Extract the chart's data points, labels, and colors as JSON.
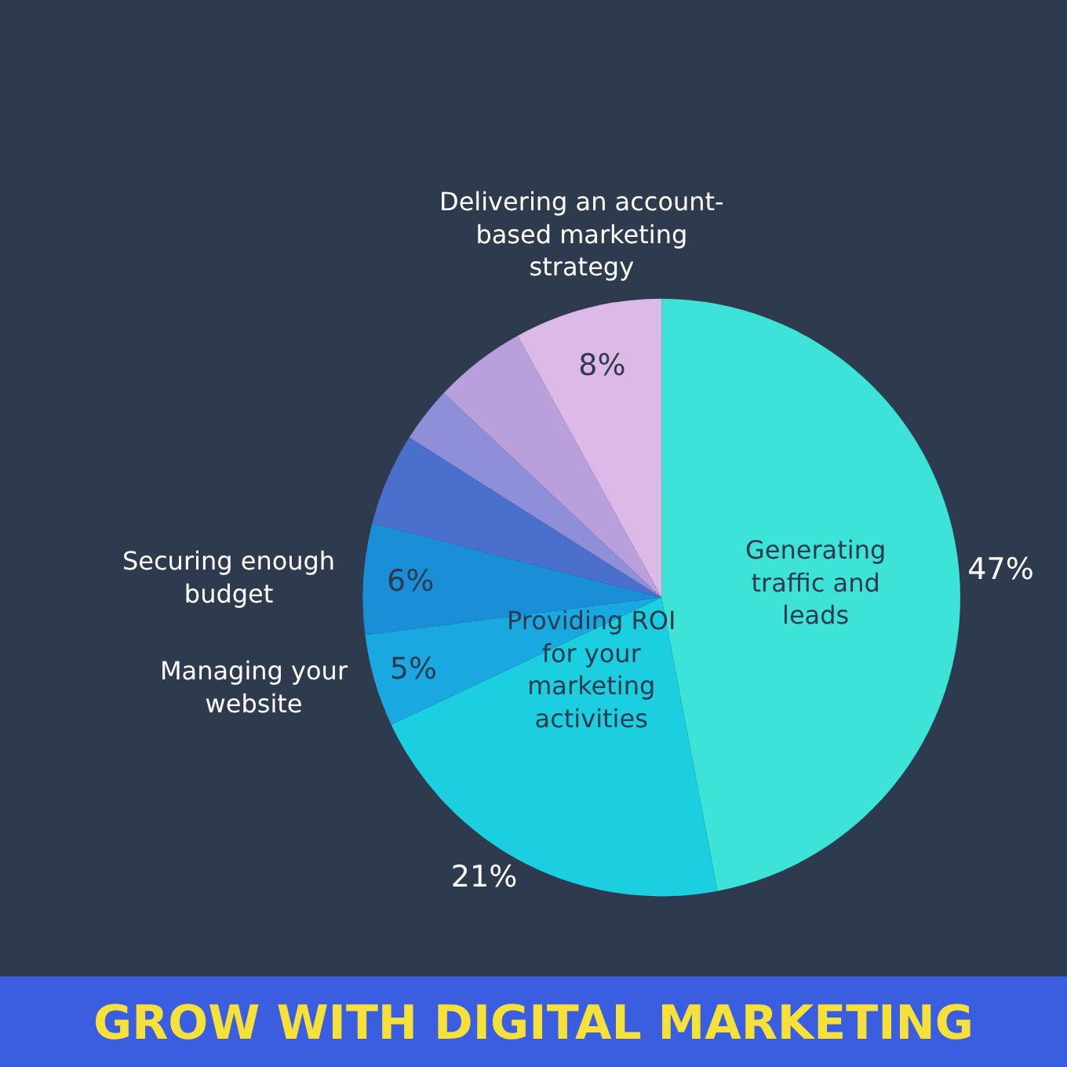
{
  "chart_data": {
    "type": "pie",
    "title": "GROW WITH DIGITAL MARKETING",
    "categories": [
      "Generating traffic and leads",
      "Providing ROI for your marketing activities",
      "Managing your website",
      "Securing enough budget",
      null,
      null,
      null,
      "Delivering an account-based marketing strategy"
    ],
    "values": [
      47,
      21,
      5,
      6,
      5,
      3,
      5,
      8
    ],
    "value_labels": [
      "47%",
      "21%",
      "5%",
      "6%",
      null,
      null,
      null,
      "8%"
    ],
    "colors": [
      "#3de3d6",
      "#1ccfe0",
      "#1aa8e0",
      "#1a8fd8",
      "#4a6fcc",
      "#8e8fd8",
      "#b9a0dc",
      "#dcb9e6"
    ],
    "legend": false
  }
}
